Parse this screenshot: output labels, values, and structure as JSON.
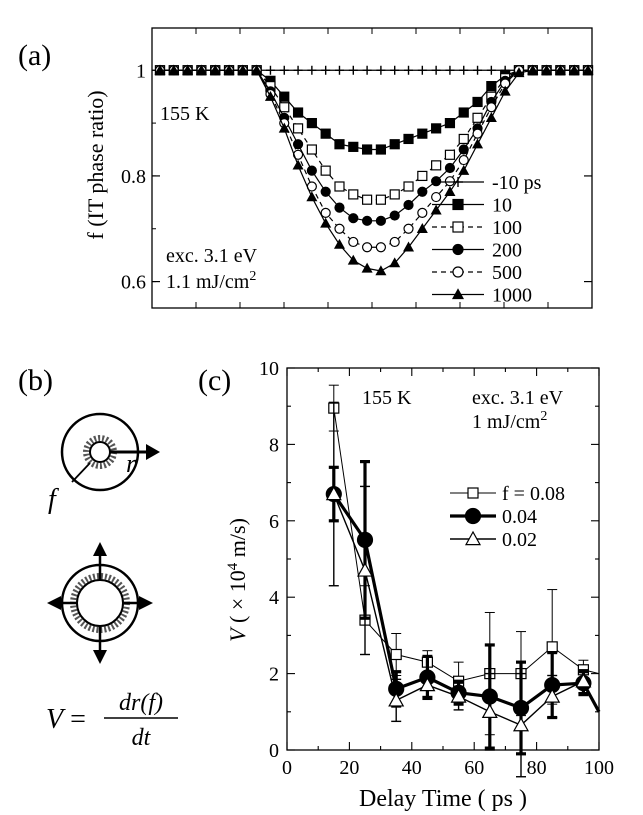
{
  "panel_a": {
    "label": "(a)",
    "ylabel": "f (IT phase ratio)",
    "temperature": "155 K",
    "exc_line1": "exc. 3.1 eV",
    "exc_line2_prefix": "1.1 mJ/cm",
    "exc_line2_sup": "2",
    "yticks": [
      "1",
      "0.8",
      "0.6"
    ]
  },
  "panel_b": {
    "label": "(b)",
    "f_label": "f",
    "r_label": "r",
    "formula_lhs": "V =",
    "formula_num": "dr(f)",
    "formula_den": "dt"
  },
  "panel_c": {
    "label": "(c)",
    "temperature": "155 K",
    "exc_line1": "exc. 3.1 eV",
    "exc_line2_prefix": "1 mJ/cm",
    "exc_line2_sup": "2",
    "ylabel_main": "V",
    "ylabel_rest_a": "( × 10",
    "ylabel_sup": "4",
    "ylabel_rest_b": " m/s)",
    "xlabel": "Delay Time ( ps )",
    "xticks": [
      "0",
      "20",
      "40",
      "60",
      "80",
      "100"
    ],
    "yticks": [
      "0",
      "2",
      "4",
      "6",
      "8",
      "10"
    ]
  },
  "chart_data": [
    {
      "type": "line",
      "panel": "(a)",
      "ylabel": "f (IT phase ratio)",
      "ylim": [
        0.55,
        1.08
      ],
      "xlabel": "",
      "x": [
        0,
        1,
        2,
        3,
        4,
        5,
        6,
        7,
        8,
        9,
        10,
        11,
        12,
        13,
        14,
        15,
        16,
        17,
        18,
        19,
        20,
        21,
        22,
        23,
        24,
        25,
        26,
        27,
        28,
        29,
        30,
        31
      ],
      "legend_placement": "bottom-right",
      "series": [
        {
          "name": "-10 ps",
          "marker": "plus",
          "values": [
            1,
            1,
            1,
            1,
            1,
            1,
            1,
            1,
            1,
            1,
            1,
            1,
            1,
            1,
            1,
            1,
            1,
            1,
            1,
            1,
            1,
            1,
            1,
            1,
            1,
            1,
            1,
            1,
            1,
            1,
            1,
            1
          ]
        },
        {
          "name": "10",
          "marker": "filled-square",
          "values": [
            1,
            1,
            1,
            1,
            1,
            1,
            1,
            1,
            0.98,
            0.95,
            0.92,
            0.9,
            0.88,
            0.86,
            0.855,
            0.85,
            0.85,
            0.86,
            0.87,
            0.88,
            0.89,
            0.9,
            0.92,
            0.94,
            0.97,
            0.99,
            1,
            1,
            1,
            1,
            1,
            1
          ]
        },
        {
          "name": "100",
          "marker": "open-square",
          "values": [
            1,
            1,
            1,
            1,
            1,
            1,
            1,
            1,
            0.97,
            0.93,
            0.89,
            0.85,
            0.81,
            0.78,
            0.765,
            0.755,
            0.755,
            0.765,
            0.78,
            0.8,
            0.82,
            0.84,
            0.87,
            0.91,
            0.95,
            0.985,
            1,
            1,
            1,
            1,
            1,
            1
          ]
        },
        {
          "name": "200",
          "marker": "filled-circle",
          "values": [
            1,
            1,
            1,
            1,
            1,
            1,
            1,
            1,
            0.96,
            0.91,
            0.86,
            0.81,
            0.77,
            0.74,
            0.72,
            0.715,
            0.715,
            0.725,
            0.745,
            0.77,
            0.79,
            0.815,
            0.85,
            0.89,
            0.94,
            0.98,
            1,
            1,
            1,
            1,
            1,
            1
          ]
        },
        {
          "name": "500",
          "marker": "open-circle",
          "values": [
            1,
            1,
            1,
            1,
            1,
            1,
            1,
            1,
            0.955,
            0.9,
            0.84,
            0.78,
            0.73,
            0.7,
            0.675,
            0.665,
            0.665,
            0.675,
            0.7,
            0.73,
            0.76,
            0.79,
            0.83,
            0.88,
            0.93,
            0.975,
            1,
            1,
            1,
            1,
            1,
            1
          ]
        },
        {
          "name": "1000",
          "marker": "filled-triangle",
          "values": [
            1,
            1,
            1,
            1,
            1,
            1,
            1,
            1,
            0.95,
            0.89,
            0.82,
            0.76,
            0.71,
            0.67,
            0.64,
            0.625,
            0.62,
            0.635,
            0.665,
            0.7,
            0.735,
            0.77,
            0.81,
            0.86,
            0.91,
            0.96,
            0.995,
            1,
            1,
            1,
            1,
            1
          ]
        }
      ]
    },
    {
      "type": "line",
      "panel": "(c)",
      "xlabel": "Delay Time ( ps )",
      "ylabel": "V ( × 10^4 m/s)",
      "xlim": [
        0,
        100
      ],
      "ylim": [
        0,
        10
      ],
      "grid": false,
      "legend_placement": "right",
      "x": [
        15,
        25,
        35,
        45,
        55,
        65,
        75,
        85,
        95,
        100
      ],
      "series": [
        {
          "name": "f = 0.08",
          "marker": "open-square",
          "line_weight": "thin",
          "values": [
            8.95,
            3.4,
            2.5,
            2.3,
            1.8,
            2.0,
            2.0,
            2.7,
            2.1,
            2.0
          ],
          "errors": [
            0.6,
            0.9,
            0.55,
            0.3,
            0.5,
            1.6,
            1.1,
            1.5,
            0.25,
            null
          ]
        },
        {
          "name": "0.04",
          "marker": "filled-circle",
          "line_weight": "thick",
          "values": [
            6.7,
            5.5,
            1.6,
            1.9,
            1.5,
            1.4,
            1.1,
            1.7,
            1.75,
            1.0
          ],
          "errors": [
            0.7,
            2.05,
            0.45,
            0.55,
            0.3,
            1.35,
            1.2,
            0.85,
            0.3,
            null
          ]
        },
        {
          "name": "0.02",
          "marker": "open-triangle",
          "line_weight": "medium",
          "values": [
            6.7,
            4.7,
            1.3,
            1.7,
            1.4,
            1.0,
            0.65,
            1.4,
            1.8,
            1.0
          ],
          "errors": [
            2.4,
            2.2,
            0.55,
            0.3,
            0.35,
            1.0,
            1.35,
            0.55,
            0.3,
            null
          ]
        }
      ]
    }
  ]
}
